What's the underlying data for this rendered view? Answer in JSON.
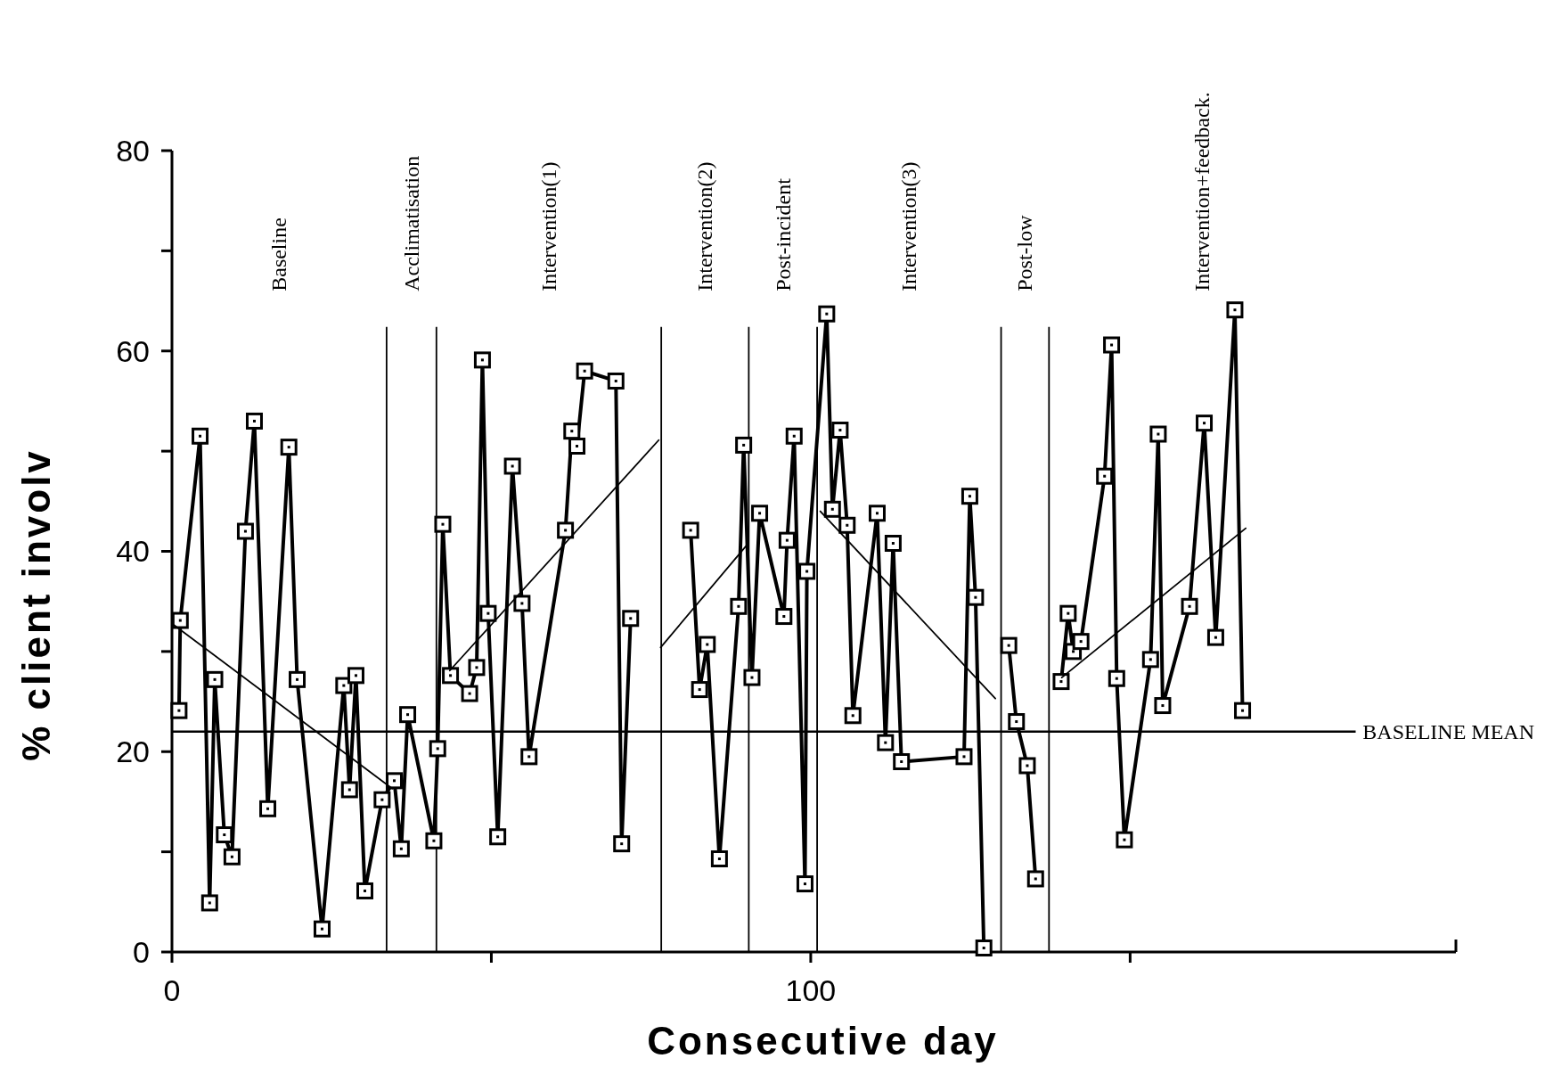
{
  "chart_data": {
    "type": "line",
    "xlabel": "Consecutive day",
    "ylabel": "% client involv",
    "xlim": [
      0,
      201
    ],
    "xticks": [
      0,
      {
        "value": 50,
        "label": null
      },
      100,
      {
        "value": 150,
        "label": null
      }
    ],
    "ylim": [
      0,
      80
    ],
    "yticks": [
      0,
      {
        "value": 10,
        "label": null
      },
      20,
      {
        "value": 30,
        "label": null
      },
      40,
      {
        "value": 50,
        "label": null
      },
      60,
      {
        "value": 70,
        "label": null
      },
      80
    ],
    "grid": false,
    "marker": "square",
    "annotations": [
      "Baseline",
      "Acclimatisation",
      "Intervention(1)",
      "Intervention(2)",
      "Post-incident",
      "Intervention(3)",
      "Post-low",
      "Intervention+feedback."
    ],
    "ref_lines": [
      {
        "axis": "y",
        "value": 22,
        "label": "BASELINE MEAN",
        "color": "#000000"
      },
      {
        "axis": "x",
        "value": 33.6,
        "color": "#000000"
      },
      {
        "axis": "x",
        "value": 41.4,
        "color": "#000000"
      },
      {
        "axis": "x",
        "value": 76.6,
        "color": "#000000"
      },
      {
        "axis": "x",
        "value": 90.3,
        "color": "#000000"
      },
      {
        "axis": "x",
        "value": 101.0,
        "color": "#000000"
      },
      {
        "axis": "x",
        "value": 129.8,
        "color": "#000000"
      },
      {
        "axis": "x",
        "value": 137.3,
        "color": "#000000"
      }
    ],
    "series": [
      {
        "color": "#000000",
        "x": [
          1.1,
          1.3,
          4.4,
          5.9,
          6.7,
          8.2,
          9.4,
          11.5,
          12.9,
          15.0,
          18.3,
          19.6,
          23.5,
          26.9,
          27.8,
          28.8,
          30.2,
          32.9,
          34.8,
          35.9,
          36.9,
          41.0,
          41.6,
          42.4,
          43.6,
          46.6,
          47.7,
          48.6,
          49.5,
          51.0,
          53.3,
          54.8,
          55.9,
          61.6,
          62.6,
          63.4,
          64.6,
          69.5,
          70.4,
          71.8,
          76.5,
          81.2,
          82.6,
          83.8,
          85.7,
          88.7,
          89.5,
          90.8,
          92.0,
          95.8,
          96.3,
          97.4,
          99.1,
          99.4,
          102.5,
          103.4,
          104.6,
          105.7,
          106.6,
          110.4,
          111.7,
          112.9,
          114.2,
          124.0,
          124.9,
          125.8,
          127.1,
          129.0,
          131.0,
          132.2,
          133.9,
          135.2,
          137.0,
          139.2,
          140.3,
          141.1,
          142.3,
          146.0,
          147.1,
          147.9,
          149.1,
          153.2,
          154.4,
          155.1,
          159.3,
          161.6,
          163.4,
          166.4,
          167.6
        ],
        "values": [
          24.1,
          33.1,
          51.5,
          4.9,
          27.2,
          11.7,
          9.5,
          42.0,
          53.0,
          14.3,
          50.4,
          27.2,
          2.3,
          26.6,
          16.2,
          27.6,
          6.1,
          15.2,
          17.1,
          10.3,
          23.7,
          11.1,
          20.3,
          42.7,
          27.6,
          25.8,
          28.4,
          59.1,
          33.8,
          11.5,
          48.5,
          34.8,
          19.5,
          42.1,
          52.0,
          50.5,
          58.0,
          57.0,
          10.8,
          33.3,
          null,
          42.1,
          26.2,
          30.7,
          9.3,
          34.5,
          50.6,
          27.4,
          43.8,
          33.5,
          41.1,
          51.5,
          6.8,
          38.0,
          63.7,
          44.2,
          52.1,
          42.6,
          23.6,
          43.8,
          20.9,
          40.8,
          19.0,
          19.5,
          45.5,
          35.4,
          0.4,
          null,
          30.6,
          23.0,
          18.6,
          7.3,
          null,
          27.0,
          33.8,
          30.0,
          31.0,
          47.5,
          60.6,
          27.3,
          11.2,
          29.2,
          51.7,
          24.6,
          34.5,
          52.8,
          31.4,
          64.1,
          24.1
        ]
      },
      {
        "color": "#000000",
        "marker": "none",
        "x": [
          0,
          34.5
        ],
        "values": [
          32.8,
          16.3
        ]
      },
      {
        "color": "#000000",
        "marker": "none",
        "x": [
          43.5,
          76.2
        ],
        "values": [
          28.1,
          51.1
        ]
      },
      {
        "color": "#000000",
        "marker": "none",
        "x": [
          76.5,
          90.1
        ],
        "values": [
          30.4,
          40.7
        ]
      },
      {
        "color": "#000000",
        "marker": "none",
        "x": [
          101.5,
          128.9
        ],
        "values": [
          44.0,
          25.3
        ]
      },
      {
        "color": "#000000",
        "marker": "none",
        "x": [
          139.3,
          168.1
        ],
        "values": [
          27.4,
          42.3
        ]
      }
    ]
  }
}
